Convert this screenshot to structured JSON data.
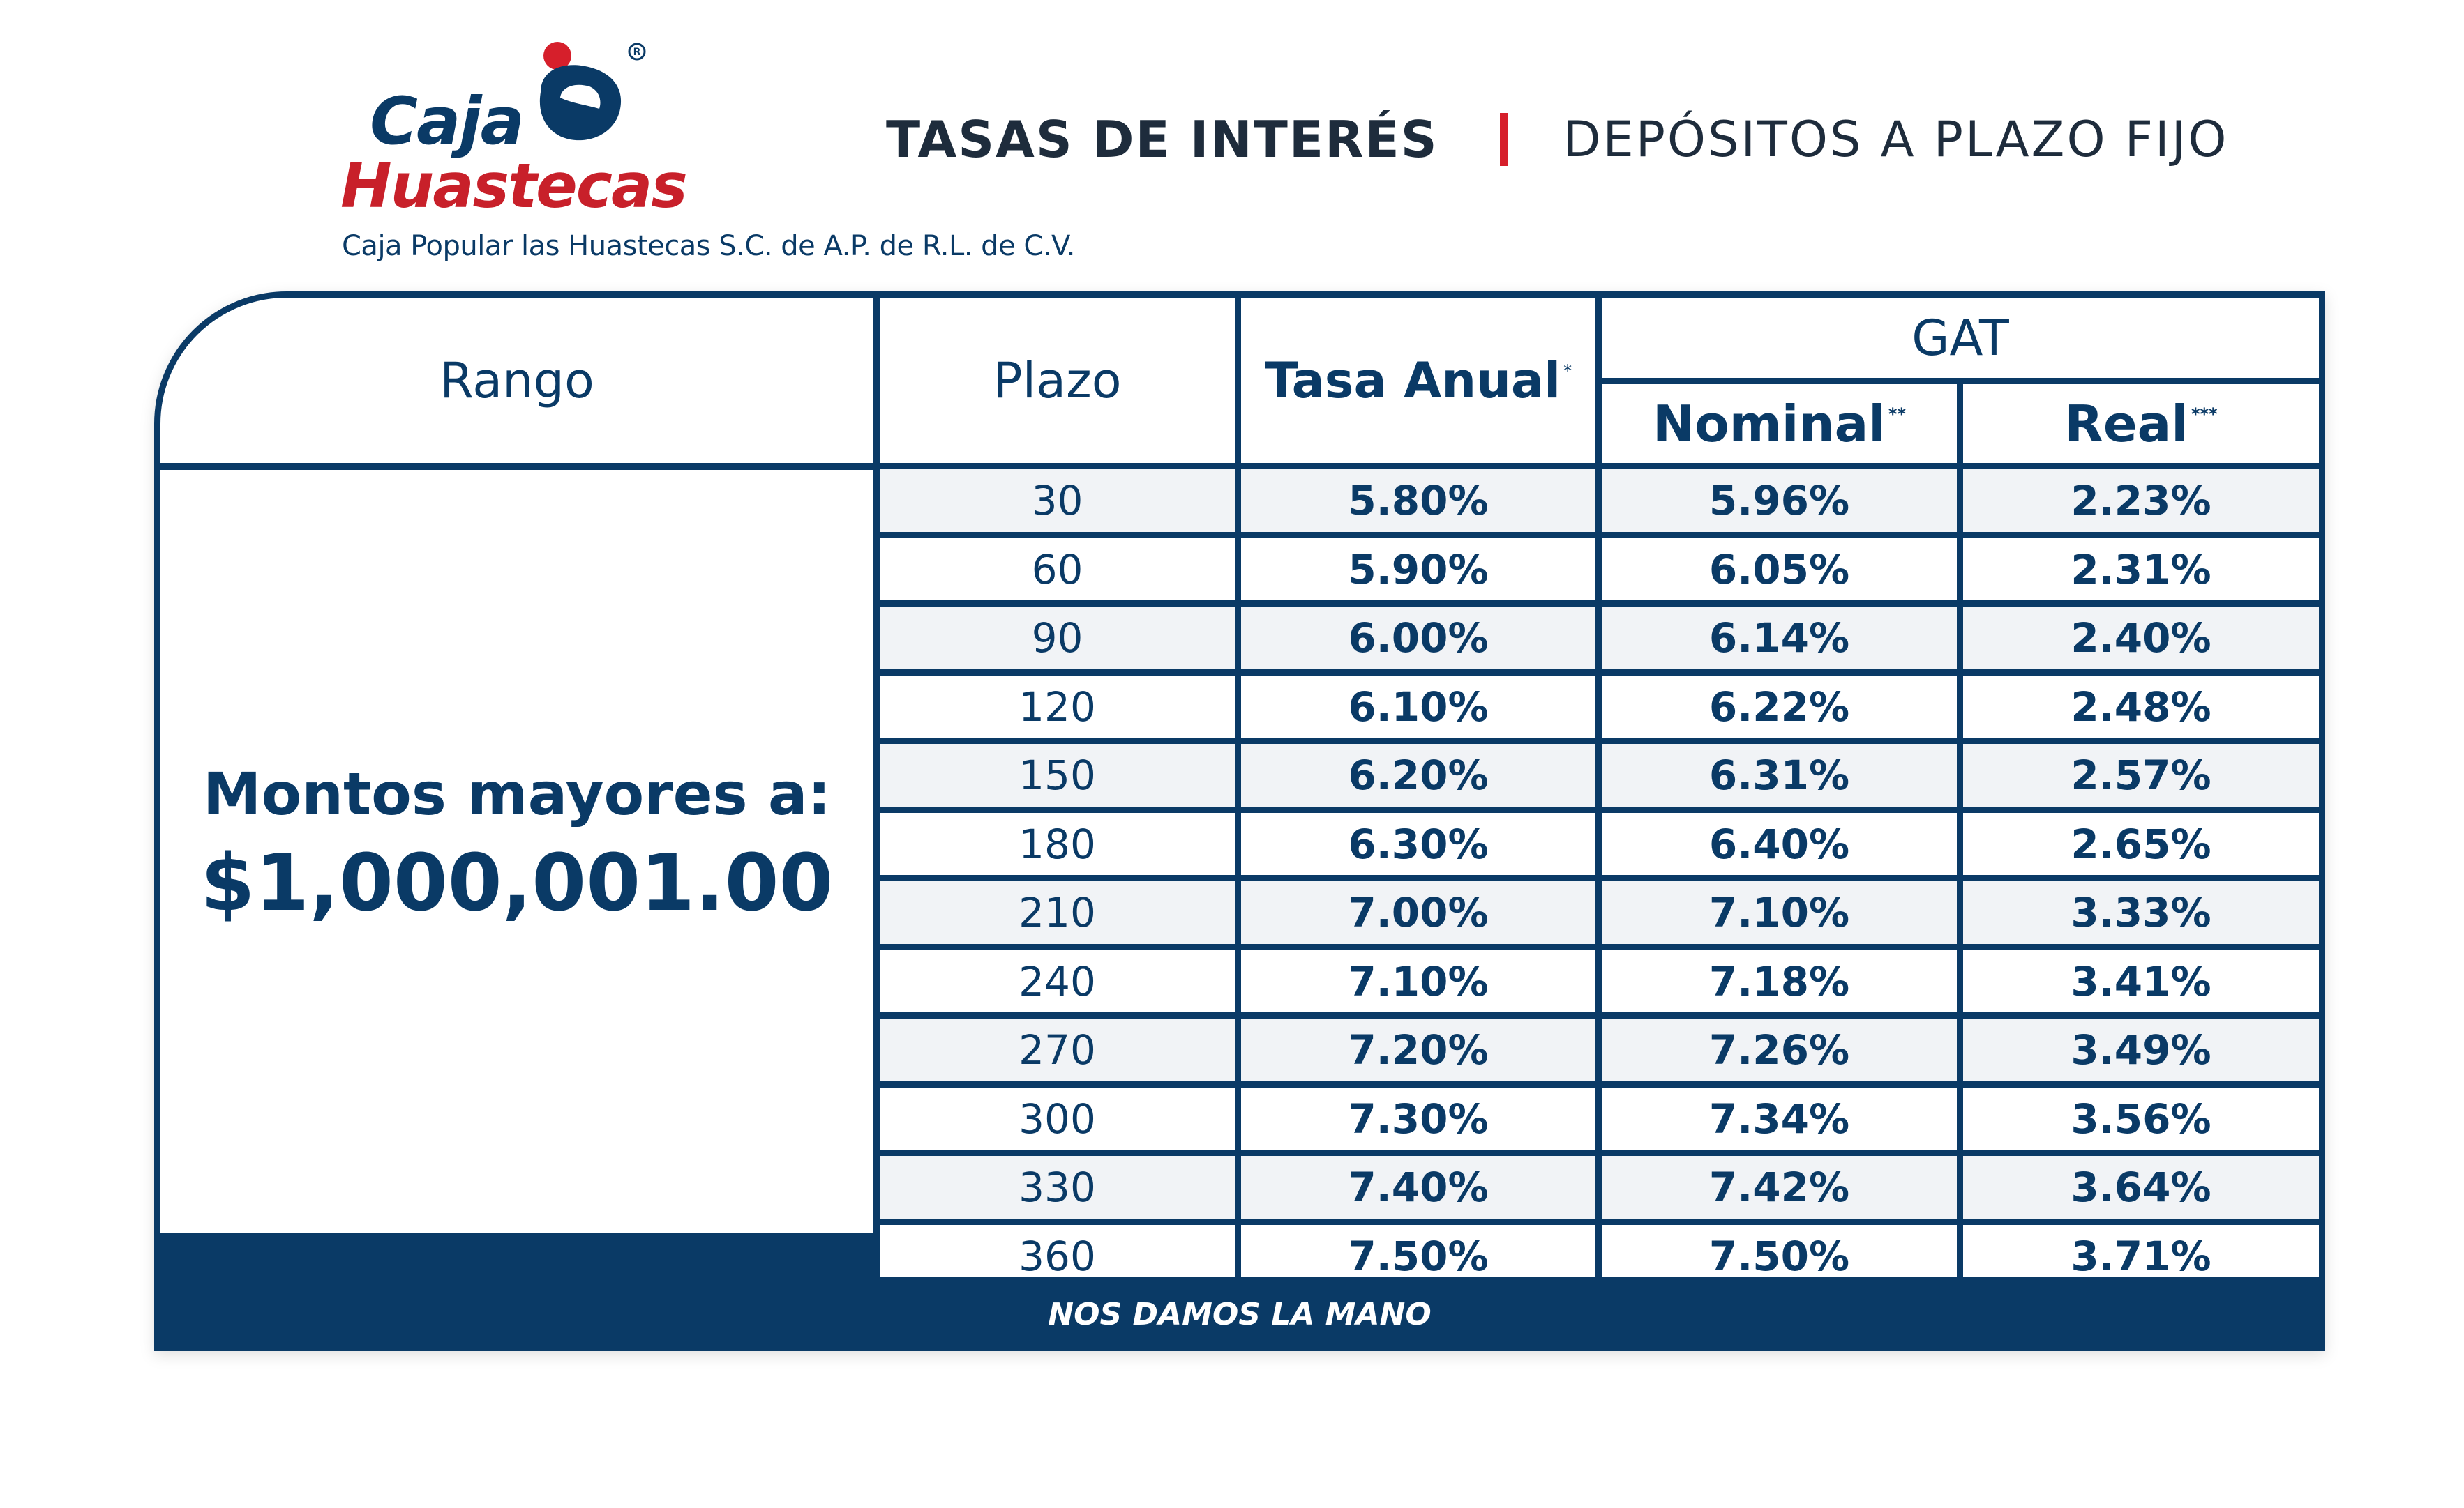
{
  "brand": {
    "name_line1": "Caja",
    "name_line2": "Huastecas",
    "legal": "Caja Popular las Huastecas S.C. de A.P. de R.L. de C.V.",
    "colors": {
      "navy": "#0a3a66",
      "red": "#c8202a"
    }
  },
  "header": {
    "title": "TASAS DE INTERÉS",
    "subtitle": "DEPÓSITOS A PLAZO FIJO"
  },
  "table": {
    "headers": {
      "rango": "Rango",
      "plazo": "Plazo",
      "tasa": "Tasa Anual",
      "tasa_mark": "*",
      "gat": "GAT",
      "nominal": "Nominal",
      "nominal_mark": "**",
      "real": "Real",
      "real_mark": "***"
    },
    "range_label": "Montos mayores a:",
    "range_value": "$1,000,001.00",
    "rows": [
      {
        "plazo": "30",
        "tasa": "5.80%",
        "nominal": "5.96%",
        "real": "2.23%"
      },
      {
        "plazo": "60",
        "tasa": "5.90%",
        "nominal": "6.05%",
        "real": "2.31%"
      },
      {
        "plazo": "90",
        "tasa": "6.00%",
        "nominal": "6.14%",
        "real": "2.40%"
      },
      {
        "plazo": "120",
        "tasa": "6.10%",
        "nominal": "6.22%",
        "real": "2.48%"
      },
      {
        "plazo": "150",
        "tasa": "6.20%",
        "nominal": "6.31%",
        "real": "2.57%"
      },
      {
        "plazo": "180",
        "tasa": "6.30%",
        "nominal": "6.40%",
        "real": "2.65%"
      },
      {
        "plazo": "210",
        "tasa": "7.00%",
        "nominal": "7.10%",
        "real": "3.33%"
      },
      {
        "plazo": "240",
        "tasa": "7.10%",
        "nominal": "7.18%",
        "real": "3.41%"
      },
      {
        "plazo": "270",
        "tasa": "7.20%",
        "nominal": "7.26%",
        "real": "3.49%"
      },
      {
        "plazo": "300",
        "tasa": "7.30%",
        "nominal": "7.34%",
        "real": "3.56%"
      },
      {
        "plazo": "330",
        "tasa": "7.40%",
        "nominal": "7.42%",
        "real": "3.64%"
      },
      {
        "plazo": "360",
        "tasa": "7.50%",
        "nominal": "7.50%",
        "real": "3.71%"
      }
    ]
  },
  "footer": {
    "slogan": "NOS DAMOS LA MANO"
  }
}
